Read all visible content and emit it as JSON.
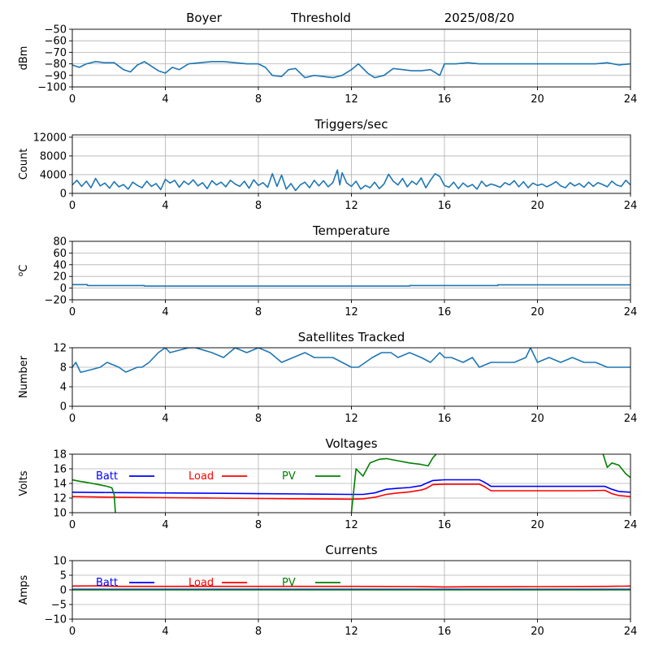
{
  "header": {
    "site": "Boyer",
    "mode": "Threshold",
    "date": "2025/08/20"
  },
  "chart_data": [
    {
      "type": "line",
      "id": "signal",
      "title": "",
      "ylabel": "dBm",
      "ylim": [
        -100,
        -50
      ],
      "yticks": [
        -100,
        -90,
        -80,
        -70,
        -60,
        -50
      ],
      "xlim": [
        0,
        24
      ],
      "xticks": [
        0,
        4,
        8,
        12,
        16,
        20,
        24
      ],
      "grid": true,
      "series": [
        {
          "color": "#1f77b4",
          "x": [
            0,
            0.3,
            0.6,
            1.0,
            1.4,
            1.8,
            2.2,
            2.5,
            2.8,
            3.1,
            3.4,
            3.7,
            4.0,
            4.3,
            4.6,
            5.0,
            5.5,
            6.0,
            6.5,
            7.0,
            7.5,
            8.0,
            8.3,
            8.6,
            9.0,
            9.3,
            9.6,
            10.0,
            10.4,
            10.8,
            11.2,
            11.6,
            12.0,
            12.3,
            12.7,
            13.0,
            13.4,
            13.8,
            14.2,
            14.6,
            15.0,
            15.4,
            15.8,
            16.0,
            16.5,
            17.0,
            17.5,
            18.0,
            18.5,
            19.0,
            19.5,
            20.0,
            20.5,
            21.0,
            21.5,
            22.0,
            22.5,
            23.0,
            23.5,
            24.0
          ],
          "y": [
            -81,
            -83,
            -80,
            -78,
            -79,
            -79,
            -85,
            -87,
            -81,
            -78,
            -82,
            -86,
            -88,
            -83,
            -85,
            -80,
            -79,
            -78,
            -78,
            -79,
            -80,
            -80,
            -83,
            -90,
            -91,
            -85,
            -84,
            -92,
            -90,
            -91,
            -92,
            -90,
            -85,
            -80,
            -88,
            -92,
            -90,
            -84,
            -85,
            -86,
            -86,
            -85,
            -90,
            -80,
            -80,
            -79,
            -80,
            -80,
            -80,
            -80,
            -80,
            -80,
            -80,
            -80,
            -80,
            -80,
            -80,
            -79,
            -81,
            -80
          ]
        }
      ]
    },
    {
      "type": "line",
      "id": "triggers",
      "title": "Triggers/sec",
      "ylabel": "Count",
      "ylim": [
        0,
        12500
      ],
      "yticks": [
        0,
        4000,
        8000,
        12000
      ],
      "xlim": [
        0,
        24
      ],
      "xticks": [
        0,
        4,
        8,
        12,
        16,
        20,
        24
      ],
      "grid": true,
      "series": [
        {
          "color": "#1f77b4",
          "x": [
            0,
            0.2,
            0.4,
            0.6,
            0.8,
            1.0,
            1.2,
            1.4,
            1.6,
            1.8,
            2.0,
            2.2,
            2.4,
            2.6,
            2.8,
            3.0,
            3.2,
            3.4,
            3.6,
            3.8,
            4.0,
            4.2,
            4.4,
            4.6,
            4.8,
            5.0,
            5.2,
            5.4,
            5.6,
            5.8,
            6.0,
            6.2,
            6.4,
            6.6,
            6.8,
            7.0,
            7.2,
            7.4,
            7.6,
            7.8,
            8.0,
            8.2,
            8.4,
            8.6,
            8.8,
            9.0,
            9.2,
            9.4,
            9.6,
            9.8,
            10.0,
            10.2,
            10.4,
            10.6,
            10.8,
            11.0,
            11.2,
            11.4,
            11.5,
            11.6,
            11.8,
            12.0,
            12.2,
            12.4,
            12.6,
            12.8,
            13.0,
            13.2,
            13.4,
            13.6,
            13.8,
            14.0,
            14.2,
            14.4,
            14.6,
            14.8,
            15.0,
            15.2,
            15.4,
            15.6,
            15.8,
            16.0,
            16.2,
            16.4,
            16.6,
            16.8,
            17.0,
            17.2,
            17.4,
            17.6,
            17.8,
            18.0,
            18.2,
            18.4,
            18.6,
            18.8,
            19.0,
            19.2,
            19.4,
            19.6,
            19.8,
            20.0,
            20.2,
            20.4,
            20.6,
            20.8,
            21.0,
            21.2,
            21.4,
            21.6,
            21.8,
            22.0,
            22.2,
            22.4,
            22.6,
            22.8,
            23.0,
            23.2,
            23.4,
            23.6,
            23.8,
            24.0
          ],
          "y": [
            1800,
            2800,
            1500,
            2600,
            1200,
            3200,
            1600,
            2200,
            1100,
            2500,
            1400,
            1900,
            900,
            2400,
            1700,
            1200,
            2600,
            1500,
            2100,
            800,
            3000,
            2200,
            2800,
            1300,
            2600,
            1900,
            2900,
            1600,
            2300,
            1000,
            2700,
            1800,
            2400,
            1400,
            2800,
            2000,
            1500,
            2600,
            1100,
            2900,
            1700,
            2300,
            1300,
            4200,
            1500,
            3900,
            900,
            2100,
            600,
            1800,
            2400,
            1200,
            2800,
            1600,
            2700,
            1400,
            2300,
            5000,
            1800,
            4400,
            2200,
            1500,
            2600,
            900,
            1700,
            1200,
            2400,
            1000,
            2000,
            4100,
            2600,
            1800,
            3200,
            1400,
            2600,
            1900,
            3300,
            1200,
            2800,
            4200,
            3600,
            1700,
            1300,
            2400,
            1000,
            2200,
            1400,
            1900,
            900,
            2600,
            1500,
            2000,
            1700,
            1300,
            2300,
            1800,
            2700,
            1400,
            2500,
            1200,
            2200,
            1700,
            2000,
            1400,
            1900,
            2500,
            1600,
            1200,
            2300,
            1600,
            2100,
            1300,
            2400,
            1500,
            2300,
            1900,
            1400,
            2600,
            1800,
            1500,
            2800,
            1800
          ]
        }
      ]
    },
    {
      "type": "line",
      "id": "temperature",
      "title": "Temperature",
      "ylabel": "°C",
      "ylabel_sup": "o",
      "ylabel_main": "C",
      "ylim": [
        -20,
        80
      ],
      "yticks": [
        -20,
        0,
        20,
        40,
        60,
        80
      ],
      "xlim": [
        0,
        24
      ],
      "xticks": [
        0,
        4,
        8,
        12,
        16,
        20,
        24
      ],
      "grid": true,
      "series": [
        {
          "color": "#1f77b4",
          "x": [
            0,
            0.65,
            0.65,
            3.1,
            3.1,
            14.5,
            14.5,
            18.3,
            18.3,
            24
          ],
          "y": [
            6,
            6,
            4.5,
            4.5,
            3.5,
            3.5,
            4.5,
            4.5,
            5.5,
            5.5
          ]
        }
      ]
    },
    {
      "type": "line",
      "id": "satellites",
      "title": "Satellites Tracked",
      "ylabel": "Number",
      "ylim": [
        0,
        12
      ],
      "yticks": [
        0,
        4,
        8,
        12
      ],
      "xlim": [
        0,
        24
      ],
      "xticks": [
        0,
        4,
        8,
        12,
        16,
        20,
        24
      ],
      "grid": true,
      "series": [
        {
          "color": "#1f77b4",
          "x": [
            0,
            0.15,
            0.25,
            0.35,
            0.4,
            1.2,
            1.5,
            2.0,
            2.3,
            2.8,
            3.0,
            3.3,
            3.5,
            3.7,
            4.0,
            4.2,
            5.0,
            5.3,
            6.0,
            6.5,
            7.0,
            7.5,
            8.0,
            8.5,
            9.0,
            9.5,
            10.0,
            10.4,
            10.8,
            11.2,
            11.6,
            12.0,
            12.3,
            12.6,
            12.9,
            13.3,
            13.7,
            14.0,
            14.5,
            15.0,
            15.4,
            15.8,
            16.0,
            16.3,
            16.8,
            17.2,
            17.5,
            18.0,
            18.5,
            19.0,
            19.5,
            19.7,
            20.0,
            20.5,
            21.0,
            21.5,
            22.0,
            22.5,
            23.0,
            23.4,
            23.8,
            24.0
          ],
          "y": [
            8,
            9,
            8,
            7,
            7,
            8,
            9,
            8,
            7,
            8,
            8,
            9,
            10,
            11,
            12,
            11,
            12,
            12,
            11,
            10,
            12,
            11,
            12,
            11,
            9,
            10,
            11,
            10,
            10,
            10,
            9,
            8,
            8,
            9,
            10,
            11,
            11,
            10,
            11,
            10,
            9,
            11,
            10,
            10,
            9,
            10,
            8,
            9,
            9,
            9,
            10,
            12,
            9,
            10,
            9,
            10,
            9,
            9,
            8,
            8,
            8,
            8
          ]
        }
      ]
    },
    {
      "type": "line",
      "id": "voltages",
      "title": "Voltages",
      "ylabel": "Volts",
      "ylim": [
        10,
        18
      ],
      "yticks": [
        10,
        12,
        14,
        16,
        18
      ],
      "xlim": [
        0,
        24
      ],
      "xticks": [
        0,
        4,
        8,
        12,
        16,
        20,
        24
      ],
      "grid": true,
      "series": [
        {
          "name": "Batt",
          "color": "#0000ff",
          "x": [
            0,
            2,
            4,
            6,
            8,
            10,
            12,
            12.5,
            13,
            13.5,
            14,
            14.5,
            15,
            15.2,
            15.5,
            16,
            17,
            17.5,
            17.7,
            18,
            20,
            22,
            22.9,
            23.2,
            23.5,
            24
          ],
          "y": [
            12.8,
            12.75,
            12.7,
            12.65,
            12.6,
            12.55,
            12.5,
            12.5,
            12.7,
            13.2,
            13.35,
            13.45,
            13.7,
            14.0,
            14.4,
            14.5,
            14.5,
            14.5,
            14.2,
            13.6,
            13.6,
            13.6,
            13.6,
            13.2,
            12.9,
            12.8
          ]
        },
        {
          "name": "Load",
          "color": "#ff0000",
          "x": [
            0,
            2,
            4,
            6,
            8,
            10,
            12,
            12.5,
            13,
            13.5,
            14,
            14.5,
            15,
            15.2,
            15.5,
            16,
            17,
            17.5,
            17.7,
            18,
            20,
            22,
            22.9,
            23.2,
            23.5,
            24
          ],
          "y": [
            12.2,
            12.1,
            12.05,
            12.0,
            11.95,
            11.9,
            11.85,
            11.9,
            12.1,
            12.5,
            12.7,
            12.85,
            13.1,
            13.3,
            13.85,
            13.9,
            13.9,
            13.9,
            13.6,
            13.0,
            13.0,
            13.0,
            13.05,
            12.6,
            12.35,
            12.2
          ]
        },
        {
          "name": "PV",
          "color": "#008000",
          "x": [
            0,
            0.3,
            0.7,
            1.2,
            1.5,
            1.7,
            1.8,
            1.85
          ],
          "y": [
            14.5,
            14.3,
            14.1,
            13.8,
            13.6,
            13.4,
            12.5,
            10
          ]
        },
        {
          "name": "PV",
          "color": "#008000",
          "x": [
            12.0,
            12.2,
            12.5,
            12.8,
            13.2,
            13.5,
            14.0,
            14.5,
            15.0,
            15.3,
            15.5,
            15.7
          ],
          "y": [
            10,
            16.0,
            15.0,
            16.8,
            17.3,
            17.4,
            17.1,
            16.8,
            16.6,
            16.4,
            17.5,
            18.2
          ]
        },
        {
          "name": "PV",
          "color": "#008000",
          "x": [
            22.8,
            23.0,
            23.2,
            23.5,
            23.8,
            24.0
          ],
          "y": [
            18.2,
            16.2,
            16.8,
            16.5,
            15.3,
            14.8
          ]
        }
      ],
      "legend": [
        {
          "label": "Batt",
          "color": "#0000ff"
        },
        {
          "label": "Load",
          "color": "#ff0000"
        },
        {
          "label": "PV",
          "color": "#008000"
        }
      ]
    },
    {
      "type": "line",
      "id": "currents",
      "title": "Currents",
      "ylabel": "Amps",
      "ylim": [
        -10,
        10
      ],
      "yticks": [
        -10,
        -5,
        0,
        5,
        10
      ],
      "xlim": [
        0,
        24
      ],
      "xticks": [
        0,
        4,
        8,
        12,
        16,
        20,
        24
      ],
      "grid": true,
      "series": [
        {
          "name": "Batt",
          "color": "#0000ff",
          "x": [
            0,
            24
          ],
          "y": [
            0.2,
            0.2
          ]
        },
        {
          "name": "Load",
          "color": "#ff0000",
          "x": [
            0,
            1,
            2,
            4,
            8,
            12,
            15,
            16,
            17,
            20,
            23,
            24
          ],
          "y": [
            1.3,
            1.4,
            1.2,
            1.2,
            1.2,
            1.2,
            1.15,
            1.0,
            1.05,
            1.1,
            1.2,
            1.3
          ]
        },
        {
          "name": "PV",
          "color": "#008000",
          "x": [
            0,
            24
          ],
          "y": [
            0,
            0
          ]
        }
      ],
      "legend": [
        {
          "label": "Batt",
          "color": "#0000ff"
        },
        {
          "label": "Load",
          "color": "#ff0000"
        },
        {
          "label": "PV",
          "color": "#008000"
        }
      ]
    }
  ]
}
